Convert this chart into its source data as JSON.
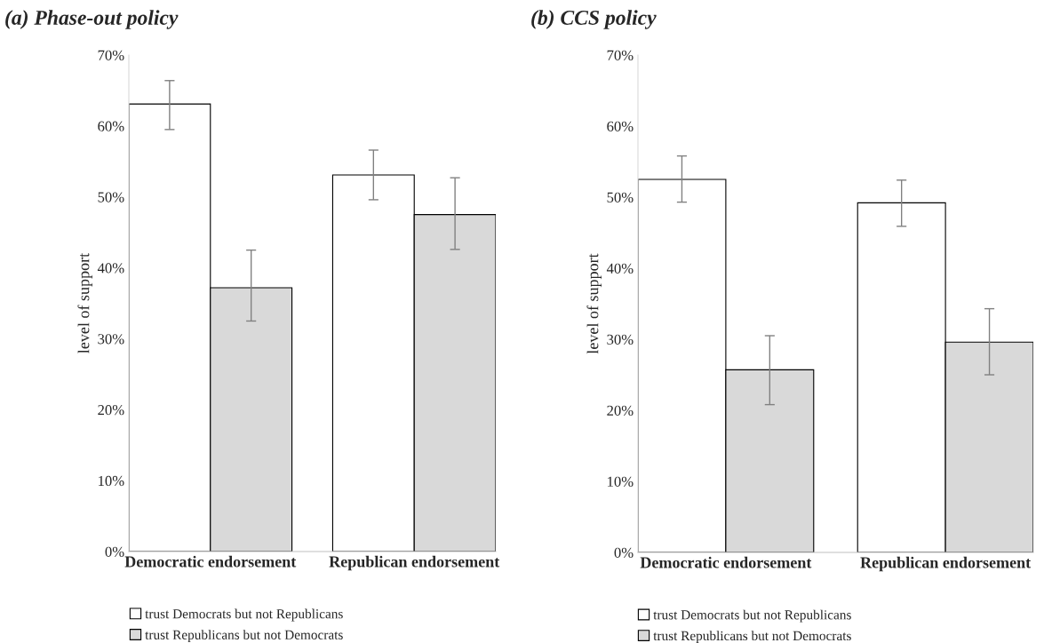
{
  "chart_data": [
    {
      "type": "bar",
      "title": "(a) Phase-out policy",
      "ylabel": "level of support",
      "categories": [
        "Democratic endorsement",
        "Republican endorsement"
      ],
      "series": [
        {
          "name": "trust Democrats but not Republicans",
          "color": "#ffffff",
          "values": [
            63.1,
            53.1
          ],
          "errors": [
            [
              59.5,
              66.4
            ],
            [
              49.6,
              56.6
            ]
          ]
        },
        {
          "name": "trust Republicans but not Democrats",
          "color": "#d9d9d9",
          "values": [
            37.2,
            47.5
          ],
          "errors": [
            [
              32.5,
              42.5
            ],
            [
              42.6,
              52.7
            ]
          ]
        }
      ],
      "ylim": [
        0,
        70
      ],
      "yticks": [
        {
          "value": 0,
          "label": "0%"
        },
        {
          "value": 10,
          "label": "10%"
        },
        {
          "value": 20,
          "label": "20%"
        },
        {
          "value": 30,
          "label": "30%"
        },
        {
          "value": 40,
          "label": "40%"
        },
        {
          "value": 50,
          "label": "50%"
        },
        {
          "value": 60,
          "label": "60%"
        },
        {
          "value": 70,
          "label": "70%"
        }
      ],
      "grid": false,
      "legend": "bottom"
    },
    {
      "type": "bar",
      "title": "(b) CCS policy",
      "ylabel": "level of support",
      "categories": [
        "Democratic endorsement",
        "Republican endorsement"
      ],
      "series": [
        {
          "name": "trust Democrats but not Republicans",
          "color": "#ffffff",
          "values": [
            52.5,
            49.2
          ],
          "errors": [
            [
              49.3,
              55.8
            ],
            [
              45.9,
              52.4
            ]
          ]
        },
        {
          "name": "trust Republicans but not Democrats",
          "color": "#d9d9d9",
          "values": [
            25.7,
            29.6
          ],
          "errors": [
            [
              20.8,
              30.5
            ],
            [
              25.0,
              34.3
            ]
          ]
        }
      ],
      "ylim": [
        0,
        70
      ],
      "yticks": [
        {
          "value": 0,
          "label": "0%"
        },
        {
          "value": 10,
          "label": "10%"
        },
        {
          "value": 20,
          "label": "20%"
        },
        {
          "value": 30,
          "label": "30%"
        },
        {
          "value": 40,
          "label": "40%"
        },
        {
          "value": 50,
          "label": "50%"
        },
        {
          "value": 60,
          "label": "60%"
        },
        {
          "value": 70,
          "label": "70%"
        }
      ],
      "grid": false,
      "legend": "bottom"
    }
  ]
}
